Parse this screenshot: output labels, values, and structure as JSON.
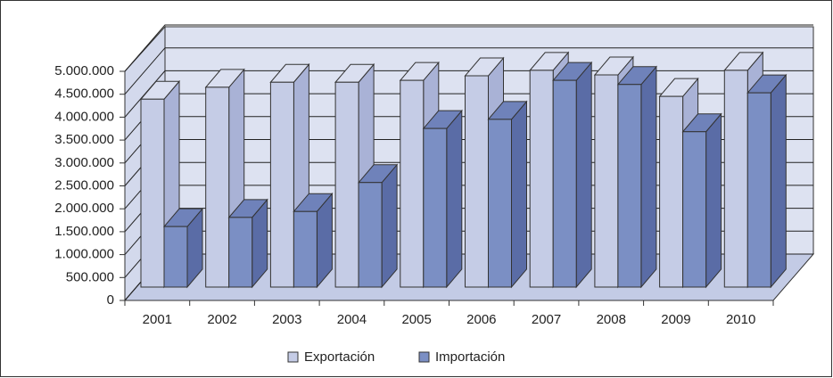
{
  "chart_data": {
    "type": "bar3d",
    "categories": [
      "2001",
      "2002",
      "2003",
      "2004",
      "2005",
      "2006",
      "2007",
      "2008",
      "2009",
      "2010"
    ],
    "series": [
      {
        "name": "Exportación",
        "color": "#c5cce6",
        "values": [
          4100000,
          4360000,
          4470000,
          4470000,
          4510000,
          4610000,
          4730000,
          4630000,
          4160000,
          4730000
        ]
      },
      {
        "name": "Importación",
        "color": "#7b8fc4",
        "values": [
          1320000,
          1520000,
          1650000,
          2280000,
          3460000,
          3660000,
          4510000,
          4420000,
          3390000,
          4240000
        ]
      }
    ],
    "ylim": [
      0,
      5000000
    ],
    "yticks": [
      0,
      {
        "value": 500000,
        "label": "500.000"
      },
      {
        "value": 1000000,
        "label": "1.000.000"
      },
      {
        "value": 1500000,
        "label": "1.500.000"
      },
      {
        "value": 2000000,
        "label": "2.000.000"
      },
      {
        "value": 2500000,
        "label": "2.500.000"
      },
      {
        "value": 3000000,
        "label": "3.000.000"
      },
      {
        "value": 3500000,
        "label": "3.500.000"
      },
      {
        "value": 4000000,
        "label": "4.000.000"
      },
      {
        "value": 4500000,
        "label": "4.500.000"
      },
      {
        "value": 5000000,
        "label": "5.000.000"
      }
    ],
    "grid": true,
    "legend": "bottom"
  }
}
